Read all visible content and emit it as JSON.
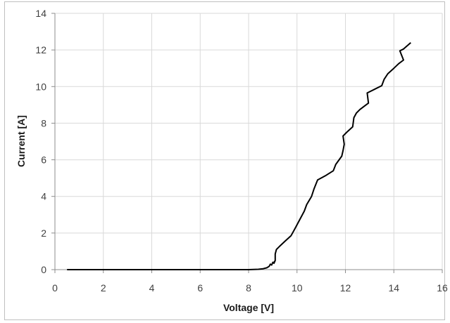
{
  "chart_data": {
    "type": "line",
    "title": "",
    "xlabel": "Voltage [V]",
    "ylabel": "Current [A]",
    "xlim": [
      0,
      16
    ],
    "ylim": [
      0,
      14
    ],
    "x_ticks": [
      "0",
      "2",
      "4",
      "6",
      "8",
      "10",
      "12",
      "14",
      "16"
    ],
    "y_ticks": [
      "0",
      "2",
      "4",
      "6",
      "8",
      "10",
      "12",
      "14"
    ],
    "grid": true,
    "legend": "none",
    "line_color": "#000000",
    "grid_color": "#d9d9d9",
    "series": [
      {
        "x": [
          0.5,
          1,
          2,
          3,
          4,
          5,
          6,
          7,
          8,
          8.4,
          8.6,
          8.75,
          8.85,
          8.9,
          8.95,
          9.0,
          9.05,
          9.1,
          9.05,
          9.1,
          9.1,
          9.15,
          9.3,
          9.5,
          9.75,
          9.9,
          10.1,
          10.3,
          10.4,
          10.6,
          10.7,
          10.85,
          11.2,
          11.5,
          11.6,
          11.85,
          11.9,
          11.95,
          11.9,
          12.05,
          12.3,
          12.35,
          12.45,
          12.6,
          12.8,
          12.95,
          12.9,
          13.2,
          13.5,
          13.6,
          13.75,
          14.0,
          14.2,
          14.4,
          14.25,
          14.4,
          14.7
        ],
        "y": [
          0,
          0,
          0,
          0,
          0,
          0,
          0,
          0,
          0,
          0.02,
          0.05,
          0.1,
          0.18,
          0.3,
          0.25,
          0.4,
          0.35,
          0.5,
          0.4,
          0.5,
          0.85,
          1.1,
          1.3,
          1.55,
          1.85,
          2.2,
          2.7,
          3.2,
          3.55,
          4.0,
          4.4,
          4.9,
          5.15,
          5.4,
          5.75,
          6.2,
          6.5,
          6.85,
          7.3,
          7.5,
          7.8,
          8.3,
          8.55,
          8.75,
          8.95,
          9.1,
          9.65,
          9.85,
          10.05,
          10.4,
          10.7,
          11.0,
          11.25,
          11.45,
          11.95,
          12.05,
          12.4
        ]
      }
    ]
  }
}
